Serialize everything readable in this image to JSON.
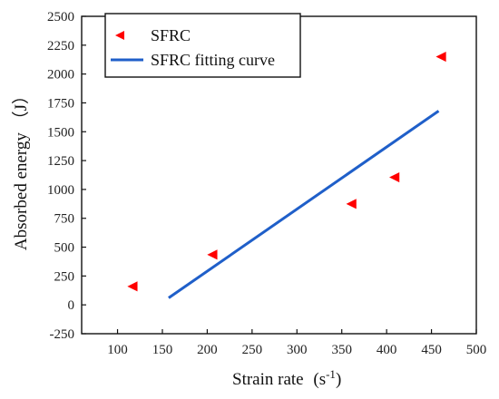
{
  "chart_data": {
    "type": "scatter",
    "xlabel": "Strain rate",
    "xlabel_paren": "(",
    "xlabel_unit": "s",
    "xlabel_unit_sup": "-1",
    "xlabel_paren_close": ")",
    "ylabel": "Absorbed  energy （J）",
    "xlim": [
      60,
      500
    ],
    "ylim": [
      -250,
      2500
    ],
    "x_ticks": [
      100,
      150,
      200,
      250,
      300,
      350,
      400,
      450,
      500
    ],
    "y_ticks": [
      -250,
      0,
      250,
      500,
      750,
      1000,
      1250,
      1500,
      1750,
      2000,
      2250,
      2500
    ],
    "legend_position": "top-left",
    "series": [
      {
        "name": "SFRC",
        "type": "scatter",
        "marker": "left-triangle",
        "color": "#ff0000",
        "points": [
          {
            "x": 118,
            "y": 160
          },
          {
            "x": 207,
            "y": 435
          },
          {
            "x": 362,
            "y": 875
          },
          {
            "x": 410,
            "y": 1105
          },
          {
            "x": 462,
            "y": 2150
          }
        ]
      },
      {
        "name": "SFRC fitting curve",
        "type": "line",
        "color": "#1f5fc9",
        "points": [
          {
            "x": 157,
            "y": 60
          },
          {
            "x": 458,
            "y": 1680
          }
        ]
      }
    ]
  }
}
